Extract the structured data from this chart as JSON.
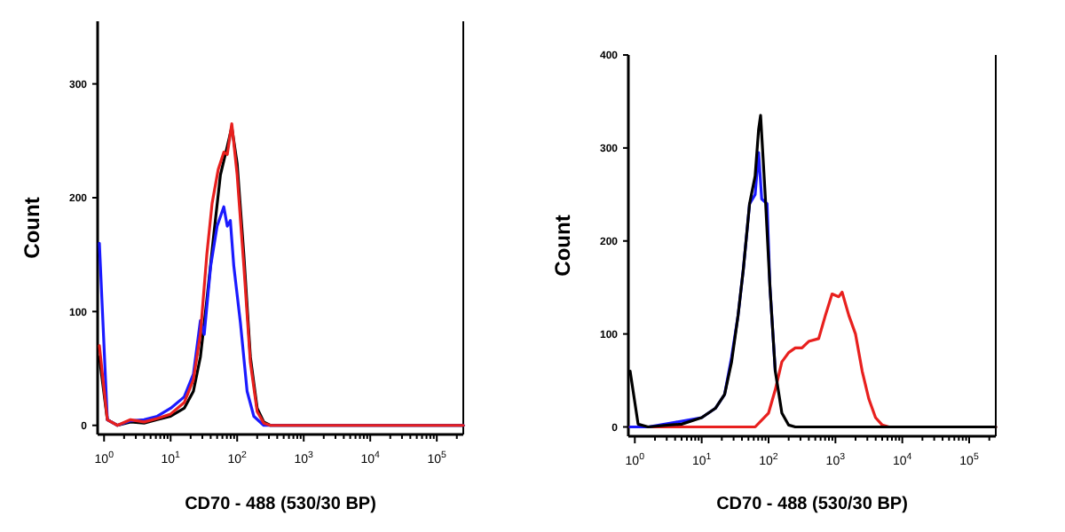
{
  "chart_data": [
    {
      "type": "line",
      "ylabel": "Count",
      "xlabel": "CD70 - 488 (530/30 BP)",
      "log": "x",
      "xlim": [
        0.8,
        250000
      ],
      "ylim": [
        -8,
        355
      ],
      "yticks": [
        0,
        100,
        200,
        300
      ],
      "xticks": [
        {
          "value": 1,
          "label": "10$^{0}$"
        },
        {
          "value": 10,
          "label": "10$^{1}$"
        },
        {
          "value": 100,
          "label": "10$^{2}$"
        },
        {
          "value": 1000,
          "label": "10$^{3}$"
        },
        {
          "value": 10000,
          "label": "10$^{4}$"
        },
        {
          "value": 100000,
          "label": "10$^{5}$"
        },
        {
          "value": 2,
          "label": null
        },
        {
          "value": 3,
          "label": null
        },
        {
          "value": 4,
          "label": null
        },
        {
          "value": 5,
          "label": null
        },
        {
          "value": 6,
          "label": null
        },
        {
          "value": 7,
          "label": null
        },
        {
          "value": 8,
          "label": null
        },
        {
          "value": 9,
          "label": null
        },
        {
          "value": 20,
          "label": null
        },
        {
          "value": 30,
          "label": null
        },
        {
          "value": 40,
          "label": null
        },
        {
          "value": 50,
          "label": null
        },
        {
          "value": 60,
          "label": null
        },
        {
          "value": 70,
          "label": null
        },
        {
          "value": 80,
          "label": null
        },
        {
          "value": 90,
          "label": null
        },
        {
          "value": 200,
          "label": null
        },
        {
          "value": 300,
          "label": null
        },
        {
          "value": 400,
          "label": null
        },
        {
          "value": 500,
          "label": null
        },
        {
          "value": 600,
          "label": null
        },
        {
          "value": 700,
          "label": null
        },
        {
          "value": 800,
          "label": null
        },
        {
          "value": 900,
          "label": null
        },
        {
          "value": 2000,
          "label": null
        },
        {
          "value": 3000,
          "label": null
        },
        {
          "value": 4000,
          "label": null
        },
        {
          "value": 5000,
          "label": null
        },
        {
          "value": 6000,
          "label": null
        },
        {
          "value": 7000,
          "label": null
        },
        {
          "value": 8000,
          "label": null
        },
        {
          "value": 9000,
          "label": null
        },
        {
          "value": 20000,
          "label": null
        },
        {
          "value": 30000,
          "label": null
        },
        {
          "value": 40000,
          "label": null
        },
        {
          "value": 50000,
          "label": null
        },
        {
          "value": 60000,
          "label": null
        },
        {
          "value": 70000,
          "label": null
        },
        {
          "value": 80000,
          "label": null
        },
        {
          "value": 90000,
          "label": null
        },
        {
          "value": 200000,
          "label": null
        }
      ],
      "series": [
        {
          "color": "#000000",
          "x": [
            0.85,
            1.12,
            1.58,
            2.5,
            4,
            6.3,
            10,
            16,
            22,
            28,
            35,
            45,
            56,
            71,
            83,
            100,
            126,
            158,
            200,
            251,
            316,
            250000
          ],
          "values": [
            60,
            5,
            0,
            3,
            2,
            5,
            8,
            15,
            30,
            60,
            110,
            170,
            220,
            245,
            262,
            230,
            150,
            60,
            15,
            3,
            0,
            0
          ]
        },
        {
          "color": "#1a1aff",
          "x": [
            0.85,
            1.12,
            1.58,
            2.5,
            4,
            6.3,
            10,
            16,
            22,
            28,
            32,
            40,
            50,
            63,
            71,
            79,
            89,
            112,
            141,
            178,
            251,
            250000
          ],
          "values": [
            160,
            5,
            0,
            4,
            5,
            8,
            15,
            25,
            45,
            92,
            80,
            140,
            175,
            192,
            175,
            180,
            140,
            90,
            30,
            8,
            0,
            0
          ]
        },
        {
          "color": "#e8201e",
          "x": [
            0.85,
            1.12,
            1.58,
            2.5,
            4,
            6.3,
            10,
            16,
            22,
            28,
            35,
            42,
            52,
            63,
            71,
            83,
            100,
            126,
            158,
            200,
            251,
            316,
            250000
          ],
          "values": [
            70,
            5,
            0,
            5,
            3,
            6,
            10,
            20,
            40,
            80,
            150,
            195,
            225,
            240,
            238,
            265,
            220,
            140,
            55,
            12,
            2,
            0,
            0
          ]
        }
      ]
    },
    {
      "type": "line",
      "ylabel": "Count",
      "xlabel": "CD70 - 488 (530/30 BP)",
      "log": "x",
      "xlim": [
        0.8,
        250000
      ],
      "ylim": [
        -10,
        400
      ],
      "yticks": [
        0,
        100,
        200,
        300,
        400
      ],
      "xticks": [
        {
          "value": 1,
          "label": "10$^{0}$"
        },
        {
          "value": 10,
          "label": "10$^{1}$"
        },
        {
          "value": 100,
          "label": "10$^{2}$"
        },
        {
          "value": 1000,
          "label": "10$^{3}$"
        },
        {
          "value": 10000,
          "label": "10$^{4}$"
        },
        {
          "value": 100000,
          "label": "10$^{5}$"
        },
        {
          "value": 2,
          "label": null
        },
        {
          "value": 3,
          "label": null
        },
        {
          "value": 4,
          "label": null
        },
        {
          "value": 5,
          "label": null
        },
        {
          "value": 6,
          "label": null
        },
        {
          "value": 7,
          "label": null
        },
        {
          "value": 8,
          "label": null
        },
        {
          "value": 9,
          "label": null
        },
        {
          "value": 20,
          "label": null
        },
        {
          "value": 30,
          "label": null
        },
        {
          "value": 40,
          "label": null
        },
        {
          "value": 50,
          "label": null
        },
        {
          "value": 60,
          "label": null
        },
        {
          "value": 70,
          "label": null
        },
        {
          "value": 80,
          "label": null
        },
        {
          "value": 90,
          "label": null
        },
        {
          "value": 200,
          "label": null
        },
        {
          "value": 300,
          "label": null
        },
        {
          "value": 400,
          "label": null
        },
        {
          "value": 500,
          "label": null
        },
        {
          "value": 600,
          "label": null
        },
        {
          "value": 700,
          "label": null
        },
        {
          "value": 800,
          "label": null
        },
        {
          "value": 900,
          "label": null
        },
        {
          "value": 2000,
          "label": null
        },
        {
          "value": 3000,
          "label": null
        },
        {
          "value": 4000,
          "label": null
        },
        {
          "value": 5000,
          "label": null
        },
        {
          "value": 6000,
          "label": null
        },
        {
          "value": 7000,
          "label": null
        },
        {
          "value": 8000,
          "label": null
        },
        {
          "value": 9000,
          "label": null
        },
        {
          "value": 20000,
          "label": null
        },
        {
          "value": 30000,
          "label": null
        },
        {
          "value": 40000,
          "label": null
        },
        {
          "value": 50000,
          "label": null
        },
        {
          "value": 60000,
          "label": null
        },
        {
          "value": 70000,
          "label": null
        },
        {
          "value": 80000,
          "label": null
        },
        {
          "value": 90000,
          "label": null
        },
        {
          "value": 200000,
          "label": null
        }
      ],
      "series": [
        {
          "color": "#e8201e",
          "x": [
            0.85,
            63,
            100,
            126,
            158,
            200,
            251,
            316,
            398,
            562,
            708,
            891,
            1122,
            1259,
            1585,
            1995,
            2512,
            3162,
            3981,
            5012,
            6310,
            250000
          ],
          "values": [
            0,
            0,
            15,
            40,
            70,
            80,
            85,
            85,
            92,
            95,
            120,
            143,
            140,
            145,
            120,
            100,
            60,
            30,
            10,
            2,
            0,
            0
          ]
        },
        {
          "color": "#1a1aff",
          "x": [
            0.85,
            1.58,
            4,
            10,
            16,
            22,
            28,
            35,
            42,
            52,
            63,
            71,
            79,
            95,
            105,
            126
          ],
          "values": [
            0,
            0,
            5,
            10,
            20,
            35,
            75,
            120,
            170,
            240,
            250,
            295,
            245,
            240,
            150,
            60
          ]
        },
        {
          "color": "#000000",
          "x": [
            0.85,
            1.12,
            1.58,
            3.2,
            5,
            10,
            16,
            22,
            28,
            35,
            42,
            52,
            63,
            71,
            76,
            89,
            105,
            126,
            158,
            200,
            251,
            250000
          ],
          "values": [
            60,
            3,
            0,
            2,
            3,
            10,
            20,
            35,
            70,
            120,
            170,
            240,
            270,
            320,
            335,
            250,
            150,
            60,
            15,
            2,
            0,
            0
          ]
        }
      ]
    }
  ]
}
